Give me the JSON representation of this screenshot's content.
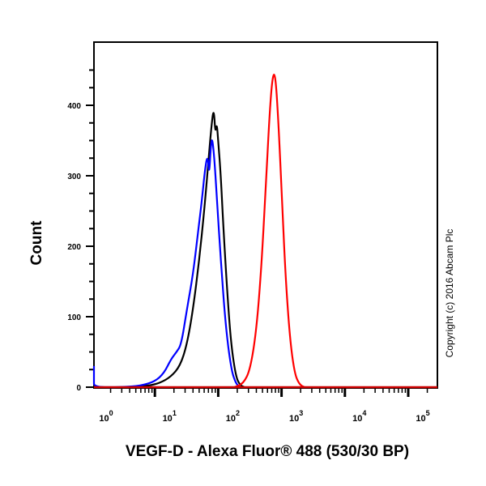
{
  "chart_data": {
    "type": "line",
    "title": "",
    "xlabel": "VEGF-D - Alexa Fluor® 488 (530/30 BP)",
    "ylabel": "Count",
    "xscale": "log",
    "xlim": [
      0.7,
      250000
    ],
    "ylim": [
      0,
      450
    ],
    "xticks": [
      "10^0",
      "10^1",
      "10^2",
      "10^3",
      "10^4",
      "10^5"
    ],
    "yticks": [
      0,
      100,
      200,
      300,
      400
    ],
    "grid": false,
    "legend": null,
    "annotations": [
      "Copyright (c) 2016 Abcam Plc"
    ],
    "series": [
      {
        "name": "black",
        "color": "#000000",
        "x": [
          4,
          8,
          12,
          18,
          25,
          32,
          40,
          50,
          60,
          70,
          78,
          85,
          90,
          95,
          100,
          110,
          120,
          140,
          160,
          190,
          220,
          260
        ],
        "y": [
          0,
          2,
          6,
          15,
          30,
          60,
          110,
          180,
          250,
          320,
          370,
          397,
          360,
          375,
          350,
          300,
          230,
          130,
          60,
          15,
          3,
          0
        ]
      },
      {
        "name": "blue",
        "color": "#0000ff",
        "x": [
          0.7,
          0.8,
          1,
          3,
          6,
          10,
          14,
          18,
          22,
          26,
          32,
          40,
          48,
          56,
          62,
          68,
          72,
          76,
          80,
          86,
          95,
          110,
          130,
          160,
          190,
          220
        ],
        "y": [
          30,
          10,
          0,
          0,
          2,
          8,
          20,
          40,
          50,
          60,
          110,
          160,
          220,
          270,
          310,
          330,
          300,
          340,
          355,
          330,
          270,
          180,
          90,
          25,
          5,
          0
        ]
      },
      {
        "name": "red",
        "color": "#ff0000",
        "x": [
          180,
          250,
          320,
          400,
          480,
          560,
          640,
          700,
          760,
          820,
          900,
          1000,
          1150,
          1350,
          1600,
          1900,
          2300
        ],
        "y": [
          0,
          5,
          25,
          80,
          170,
          280,
          380,
          430,
          448,
          430,
          370,
          280,
          160,
          70,
          20,
          4,
          0
        ]
      }
    ]
  },
  "ui": {
    "ylabel": "Count",
    "xlabel": "VEGF-D - Alexa Fluor® 488 (530/30 BP)",
    "copyright": "Copyright (c) 2016 Abcam Plc",
    "ytick_labels": [
      "0",
      "100",
      "200",
      "300",
      "400"
    ],
    "xtick_bases": [
      "10",
      "10",
      "10",
      "10",
      "10",
      "10"
    ],
    "xtick_exps": [
      "0",
      "1",
      "2",
      "3",
      "4",
      "5"
    ]
  }
}
